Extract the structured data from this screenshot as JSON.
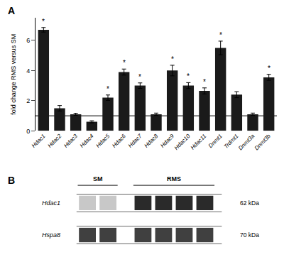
{
  "chart_data": [
    {
      "type": "bar",
      "title": "A",
      "categories": [
        "Hdac1",
        "Hdac2",
        "Hdac3",
        "Hdac4",
        "Hdac5",
        "Hdac6",
        "Hdac7",
        "Hdac8",
        "Hdac9",
        "Hdac10",
        "Hdac11",
        "Dnmt1",
        "Trdmt1",
        "Dnmt3a",
        "Dnmt3b"
      ],
      "values": [
        6.7,
        1.5,
        1.1,
        0.6,
        2.2,
        3.9,
        3.0,
        1.1,
        4.0,
        3.0,
        2.65,
        5.5,
        2.4,
        1.1,
        3.55
      ],
      "errors": [
        0.15,
        0.18,
        0.07,
        0.07,
        0.18,
        0.2,
        0.18,
        0.08,
        0.35,
        0.2,
        0.2,
        0.45,
        0.2,
        0.08,
        0.2
      ],
      "color": "#1a1a1a",
      "ylabel": "fold change RMS versus SM",
      "ylim": [
        0,
        7.5
      ],
      "yticks": [
        0,
        2,
        4,
        6
      ],
      "grid": false,
      "reference_line": 1,
      "annotations": [
        {
          "category": "Hdac1",
          "text": "*"
        },
        {
          "category": "Hdac5",
          "text": "*"
        },
        {
          "category": "Hdac6",
          "text": "*"
        },
        {
          "category": "Hdac7",
          "text": "*"
        },
        {
          "category": "Hdac9",
          "text": "*"
        },
        {
          "category": "Hdac10",
          "text": "*"
        },
        {
          "category": "Hdac11",
          "text": "*"
        },
        {
          "category": "Dnmt1",
          "text": "*"
        },
        {
          "category": "Dnmt3b",
          "text": "*"
        }
      ]
    },
    {
      "type": "blot",
      "title": "B",
      "groups": [
        {
          "name": "SM",
          "lanes": 2
        },
        {
          "name": "RMS",
          "lanes": 4
        }
      ],
      "rows": [
        {
          "name": "Hdac1",
          "label": "62 kDa",
          "colors": [
            "#c8c8c8",
            "#2a2a2a"
          ]
        },
        {
          "name": "Hspa8",
          "label": "70 kDa",
          "colors": [
            "#404040",
            "#404040"
          ]
        }
      ]
    }
  ]
}
